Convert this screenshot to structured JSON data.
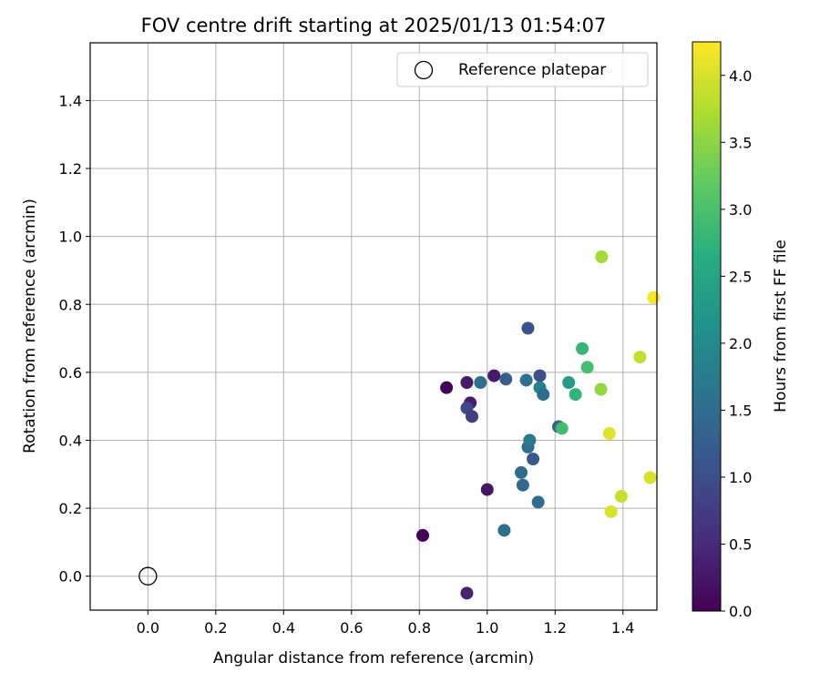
{
  "chart_data": {
    "type": "scatter",
    "title": "FOV centre drift starting at 2025/01/13 01:54:07",
    "xlabel": "Angular distance from reference (arcmin)",
    "ylabel": "Rotation from reference (arcmin)",
    "xlim": [
      -0.17,
      1.5
    ],
    "ylim": [
      -0.1,
      1.57
    ],
    "xticks": [
      "0.0",
      "0.2",
      "0.4",
      "0.6",
      "0.8",
      "1.0",
      "1.2",
      "1.4"
    ],
    "yticks": [
      "0.0",
      "0.2",
      "0.4",
      "0.6",
      "0.8",
      "1.0",
      "1.2",
      "1.4"
    ],
    "grid": true,
    "legend": {
      "location": "top-right",
      "entries": [
        "Reference platepar"
      ]
    },
    "reference_point": {
      "x": 0.0,
      "y": 0.0,
      "marker": "hollow-circle"
    },
    "colorbar": {
      "label": "Hours from first FF file",
      "colormap": "viridis",
      "range": [
        0.0,
        4.25
      ],
      "ticks": [
        "0.0",
        "0.5",
        "1.0",
        "1.5",
        "2.0",
        "2.5",
        "3.0",
        "3.5",
        "4.0"
      ]
    },
    "series": [
      {
        "points": [
          {
            "x": 0.81,
            "y": 0.12,
            "c": 0.02
          },
          {
            "x": 0.88,
            "y": 0.555,
            "c": 0.05
          },
          {
            "x": 0.94,
            "y": 0.57,
            "c": 0.3
          },
          {
            "x": 0.95,
            "y": 0.51,
            "c": 0.35
          },
          {
            "x": 0.94,
            "y": -0.05,
            "c": 0.4
          },
          {
            "x": 1.0,
            "y": 0.255,
            "c": 0.25
          },
          {
            "x": 1.02,
            "y": 0.59,
            "c": 0.3
          },
          {
            "x": 0.94,
            "y": 0.495,
            "c": 0.9
          },
          {
            "x": 0.955,
            "y": 0.47,
            "c": 0.75
          },
          {
            "x": 0.98,
            "y": 0.57,
            "c": 1.55
          },
          {
            "x": 1.055,
            "y": 0.58,
            "c": 1.25
          },
          {
            "x": 1.05,
            "y": 0.135,
            "c": 1.55
          },
          {
            "x": 1.1,
            "y": 0.305,
            "c": 1.5
          },
          {
            "x": 1.105,
            "y": 0.268,
            "c": 1.45
          },
          {
            "x": 1.115,
            "y": 0.577,
            "c": 1.6
          },
          {
            "x": 1.12,
            "y": 0.73,
            "c": 1.05
          },
          {
            "x": 1.12,
            "y": 0.38,
            "c": 1.55
          },
          {
            "x": 1.125,
            "y": 0.4,
            "c": 1.7
          },
          {
            "x": 1.135,
            "y": 0.345,
            "c": 1.2
          },
          {
            "x": 1.15,
            "y": 0.218,
            "c": 1.5
          },
          {
            "x": 1.155,
            "y": 0.59,
            "c": 1.05
          },
          {
            "x": 1.155,
            "y": 0.555,
            "c": 1.85
          },
          {
            "x": 1.165,
            "y": 0.535,
            "c": 1.55
          },
          {
            "x": 1.21,
            "y": 0.44,
            "c": 1.3
          },
          {
            "x": 1.22,
            "y": 0.435,
            "c": 2.9
          },
          {
            "x": 1.24,
            "y": 0.57,
            "c": 2.3
          },
          {
            "x": 1.26,
            "y": 0.535,
            "c": 2.75
          },
          {
            "x": 1.28,
            "y": 0.67,
            "c": 2.8
          },
          {
            "x": 1.295,
            "y": 0.615,
            "c": 2.95
          },
          {
            "x": 1.335,
            "y": 0.55,
            "c": 3.55
          },
          {
            "x": 1.337,
            "y": 0.94,
            "c": 3.65
          },
          {
            "x": 1.36,
            "y": 0.42,
            "c": 4.05
          },
          {
            "x": 1.365,
            "y": 0.19,
            "c": 4.0
          },
          {
            "x": 1.395,
            "y": 0.235,
            "c": 3.9
          },
          {
            "x": 1.45,
            "y": 0.645,
            "c": 3.85
          },
          {
            "x": 1.48,
            "y": 0.29,
            "c": 4.0
          },
          {
            "x": 1.49,
            "y": 0.82,
            "c": 4.2
          }
        ]
      }
    ]
  }
}
